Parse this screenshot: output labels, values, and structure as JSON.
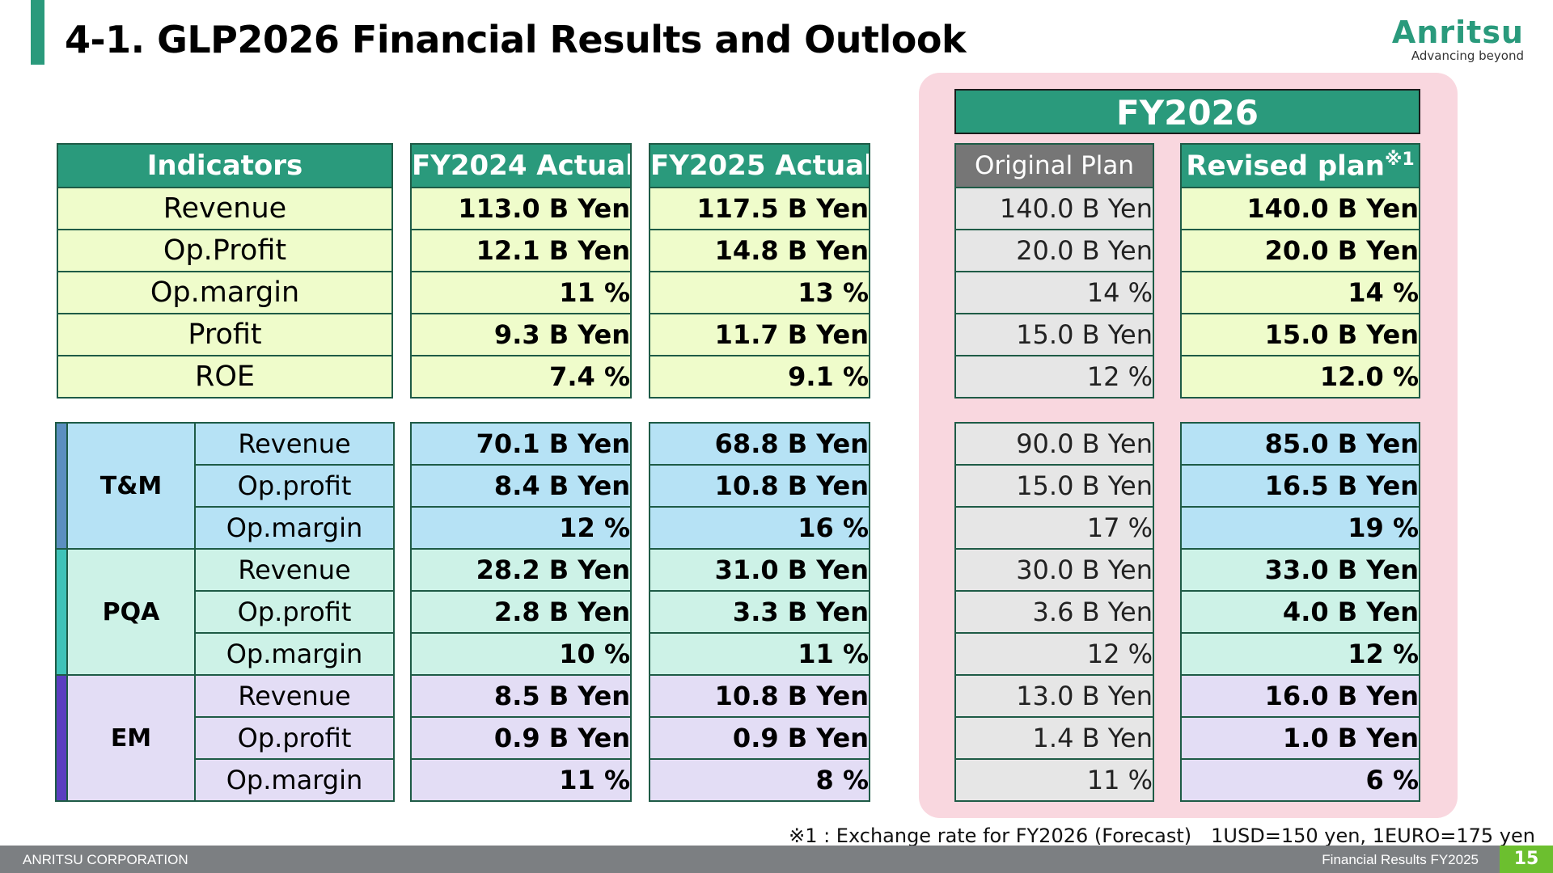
{
  "title": "4-1. GLP2026 Financial Results and Outlook",
  "logo": {
    "word": "Anritsu",
    "tagline": "Advancing beyond"
  },
  "colors": {
    "accent": "#2a9a7c",
    "yellow": "#effccb",
    "blue": "#b6e2f5",
    "teal": "#cdf2e7",
    "violet": "#e3ddf5",
    "gray": "#e6e6e6",
    "pink": "#f9d7df"
  },
  "fy_header": "FY2026",
  "indicators": {
    "header": "Indicators",
    "rows": [
      "Revenue",
      "Op.Profit",
      "Op.margin",
      "Profit",
      "ROE"
    ]
  },
  "columns": {
    "fy2024": {
      "header": "FY2024 Actual",
      "top": [
        "113.0 B Yen",
        "12.1 B Yen",
        "11 %",
        "9.3 B Yen",
        "7.4 %"
      ],
      "bottom": [
        "70.1 B Yen",
        "8.4 B Yen",
        "12 %",
        "28.2 B Yen",
        "2.8 B Yen",
        "10 %",
        "8.5 B Yen",
        "0.9 B Yen",
        "11 %"
      ]
    },
    "fy2025": {
      "header": "FY2025 Actual",
      "top": [
        "117.5 B Yen",
        "14.8 B Yen",
        "13 %",
        "11.7 B Yen",
        "9.1 %"
      ],
      "bottom": [
        "68.8 B Yen",
        "10.8 B Yen",
        "16 %",
        "31.0 B Yen",
        "3.3 B Yen",
        "11 %",
        "10.8 B Yen",
        "0.9 B Yen",
        "8 %"
      ]
    },
    "original": {
      "header": "Original Plan",
      "top": [
        "140.0 B Yen",
        "20.0 B Yen",
        "14 %",
        "15.0 B Yen",
        "12 %"
      ],
      "bottom": [
        "90.0 B Yen",
        "15.0 B Yen",
        "17 %",
        "30.0 B Yen",
        "3.6 B Yen",
        "12 %",
        "13.0 B Yen",
        "1.4 B Yen",
        "11 %"
      ]
    },
    "revised": {
      "header": "Revised plan",
      "header_sup": "※1",
      "top": [
        "140.0 B Yen",
        "20.0 B Yen",
        "14 %",
        "15.0 B Yen",
        "12.0 %"
      ],
      "bottom": [
        "85.0 B Yen",
        "16.5 B Yen",
        "19 %",
        "33.0 B Yen",
        "4.0 B Yen",
        "12 %",
        "16.0 B Yen",
        "1.0 B Yen",
        "6 %"
      ]
    }
  },
  "segments": [
    {
      "name": "T&M",
      "stripe": "#5b8fc0",
      "rows": [
        "Revenue",
        "Op.profit",
        "Op.margin"
      ]
    },
    {
      "name": "PQA",
      "stripe": "#3fc3b8",
      "rows": [
        "Revenue",
        "Op.profit",
        "Op.margin"
      ]
    },
    {
      "name": "EM",
      "stripe": "#5b3fc0",
      "rows": [
        "Revenue",
        "Op.profit",
        "Op.margin"
      ]
    }
  ],
  "note": "※1 : Exchange rate for FY2026 (Forecast)　1USD=150 yen, 1EURO=175 yen",
  "footer": {
    "company": "ANRITSU CORPORATION",
    "doc": "Financial Results FY2025",
    "page": "15"
  }
}
